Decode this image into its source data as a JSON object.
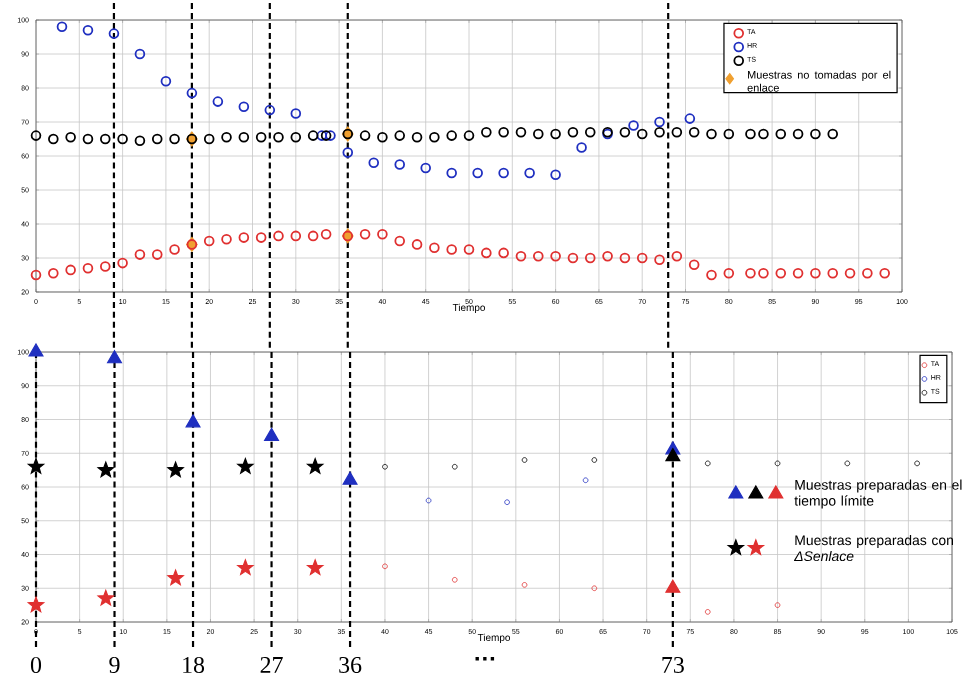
{
  "chart_data": [
    {
      "type": "scatter",
      "xlabel": "Tiempo",
      "xlim": [
        0,
        100
      ],
      "xticks": [
        0,
        5,
        10,
        15,
        20,
        25,
        30,
        35,
        40,
        45,
        50,
        55,
        60,
        65,
        70,
        75,
        80,
        85,
        90,
        95,
        100
      ],
      "ylim": [
        20,
        100
      ],
      "yticks": [
        20,
        30,
        40,
        50,
        60,
        70,
        80,
        90,
        100
      ],
      "grid": true,
      "legend": "top right",
      "series": [
        {
          "name": "Muestras no tomadas por el enlace",
          "marker": "diamond",
          "x": [
            18,
            18,
            36,
            36
          ],
          "values": [
            65,
            34,
            66.5,
            36.5
          ],
          "colors": [
            "#f0a030",
            "#f0a030",
            "#f0a030",
            "#f0a030"
          ]
        },
        {
          "name": "TA",
          "marker": "circle",
          "color": "#e03030",
          "x": [
            0,
            2,
            4,
            6,
            8,
            10,
            12,
            14,
            16,
            18,
            20,
            22,
            24,
            26,
            28,
            30,
            32,
            33.5,
            36,
            38,
            40,
            42,
            44,
            46,
            48,
            50,
            52,
            54,
            56,
            58,
            60,
            62,
            64,
            66,
            68,
            70,
            72,
            74,
            76,
            78,
            80,
            82.5,
            84,
            86,
            88,
            90,
            92,
            94,
            96,
            98
          ],
          "values": [
            25,
            25.5,
            26.5,
            27,
            27.5,
            28.5,
            31,
            31,
            32.5,
            34,
            35,
            35.5,
            36,
            36,
            36.5,
            36.5,
            36.5,
            37,
            36.5,
            37,
            37,
            35,
            34,
            33,
            32.5,
            32.5,
            31.5,
            31.5,
            30.5,
            30.5,
            30.5,
            30,
            30,
            30.5,
            30,
            30,
            29.5,
            30.5,
            28,
            25,
            25.5,
            25.5,
            25.5,
            25.5,
            25.5,
            25.5,
            25.5,
            25.5,
            25.5,
            25.5
          ]
        },
        {
          "name": "HR",
          "marker": "circle",
          "color": "#1f2fc0",
          "x": [
            3,
            6,
            9,
            12,
            15,
            18,
            21,
            24,
            27,
            30,
            33,
            34,
            36,
            39,
            42,
            45,
            48,
            51,
            54,
            57,
            60,
            63,
            66,
            69,
            72,
            75.5
          ],
          "values": [
            98,
            97,
            96,
            90,
            82,
            78.5,
            76,
            74.5,
            73.5,
            72.5,
            66,
            66,
            61,
            58,
            57.5,
            56.5,
            55,
            55,
            55,
            55,
            54.5,
            62.5,
            66.5,
            69,
            70,
            71
          ]
        },
        {
          "name": "TS",
          "marker": "circle",
          "color": "#000000",
          "x": [
            0,
            2,
            4,
            6,
            8,
            10,
            12,
            14,
            16,
            18,
            20,
            22,
            24,
            26,
            28,
            30,
            32,
            33.5,
            36,
            38,
            40,
            42,
            44,
            46,
            48,
            50,
            52,
            54,
            56,
            58,
            60,
            62,
            64,
            66,
            68,
            70,
            72,
            74,
            76,
            78,
            80,
            82.5,
            84,
            86,
            88,
            90,
            92
          ],
          "values": [
            66,
            65,
            65.5,
            65,
            65,
            65,
            64.5,
            65,
            65,
            65,
            65,
            65.5,
            65.5,
            65.5,
            65.5,
            65.5,
            66,
            66,
            66.5,
            66,
            65.5,
            66,
            65.5,
            65.5,
            66,
            66,
            67,
            67,
            67,
            66.5,
            66.5,
            67,
            67,
            67,
            67,
            66.5,
            67,
            67,
            67,
            66.5,
            66.5,
            66.5,
            66.5,
            66.5,
            66.5,
            66.5,
            66.5
          ]
        }
      ],
      "ref_lines": [
        {
          "axis": "x",
          "value": 9,
          "line_style": "dashed",
          "color": "#000000"
        },
        {
          "axis": "x",
          "value": 18,
          "line_style": "dashed",
          "color": "#000000"
        },
        {
          "axis": "x",
          "value": 27,
          "line_style": "dashed",
          "color": "#000000"
        },
        {
          "axis": "x",
          "value": 36,
          "line_style": "dashed",
          "color": "#000000"
        },
        {
          "axis": "x",
          "value": 73,
          "line_style": "dashed",
          "color": "#000000"
        }
      ]
    },
    {
      "type": "scatter",
      "xlabel": "Tiempo",
      "xlim": [
        0,
        105
      ],
      "xticks": [
        0,
        5,
        10,
        15,
        20,
        25,
        30,
        35,
        40,
        45,
        50,
        55,
        60,
        65,
        70,
        75,
        80,
        85,
        90,
        95,
        100,
        105
      ],
      "ylim": [
        20,
        100
      ],
      "yticks": [
        20,
        30,
        40,
        50,
        60,
        70,
        80,
        90,
        100
      ],
      "grid": true,
      "legend": "top right",
      "series": [
        {
          "name": "TA",
          "marker": "circle",
          "color": "#e03030",
          "x": [
            40,
            48,
            56,
            64,
            77,
            85
          ],
          "values": [
            36.5,
            32.5,
            31,
            30,
            23,
            25
          ]
        },
        {
          "name": "HR",
          "marker": "circle",
          "color": "#1f2fc0",
          "x": [
            45,
            54,
            63
          ],
          "values": [
            56,
            55.5,
            62
          ]
        },
        {
          "name": "TS",
          "marker": "circle",
          "color": "#000000",
          "x": [
            40,
            48,
            56,
            64,
            77,
            85,
            93,
            101
          ],
          "values": [
            66,
            66,
            68,
            68,
            67,
            67,
            67,
            67
          ]
        },
        {
          "name": "Muestras preparadas en el tiempo límite",
          "marker": "triangle",
          "x": [
            0,
            9,
            18,
            27,
            36,
            73,
            73,
            73
          ],
          "values": [
            100,
            98,
            79,
            75,
            62,
            71,
            69,
            30
          ],
          "colors": [
            "#1f2fc0",
            "#1f2fc0",
            "#1f2fc0",
            "#1f2fc0",
            "#1f2fc0",
            "#1f2fc0",
            "#000000",
            "#e03030"
          ]
        },
        {
          "name": "Muestras preparadas con *ΔSenlace*",
          "marker": "star",
          "x": [
            0,
            8,
            16,
            24,
            32,
            0,
            8,
            16,
            24,
            32
          ],
          "values": [
            66,
            65,
            65,
            66,
            66,
            25,
            27,
            33,
            36,
            36
          ],
          "colors": [
            "#000000",
            "#000000",
            "#000000",
            "#000000",
            "#000000",
            "#e03030",
            "#e03030",
            "#e03030",
            "#e03030",
            "#e03030"
          ]
        }
      ],
      "ref_lines": [
        {
          "axis": "x",
          "value": 0,
          "label": "0",
          "line_style": "dashed",
          "color": "#000000"
        },
        {
          "axis": "x",
          "value": 9,
          "label": "9",
          "line_style": "dashed",
          "color": "#000000"
        },
        {
          "axis": "x",
          "value": 18,
          "label": "18",
          "line_style": "dashed",
          "color": "#000000"
        },
        {
          "axis": "x",
          "value": 27,
          "label": "27",
          "line_style": "dashed",
          "color": "#000000"
        },
        {
          "axis": "x",
          "value": 36,
          "label": "36",
          "line_style": "dashed",
          "color": "#000000"
        },
        {
          "axis": "x",
          "value": 73,
          "label": "73",
          "line_style": "dashed",
          "color": "#000000"
        }
      ],
      "annotations": [
        "…"
      ]
    }
  ]
}
